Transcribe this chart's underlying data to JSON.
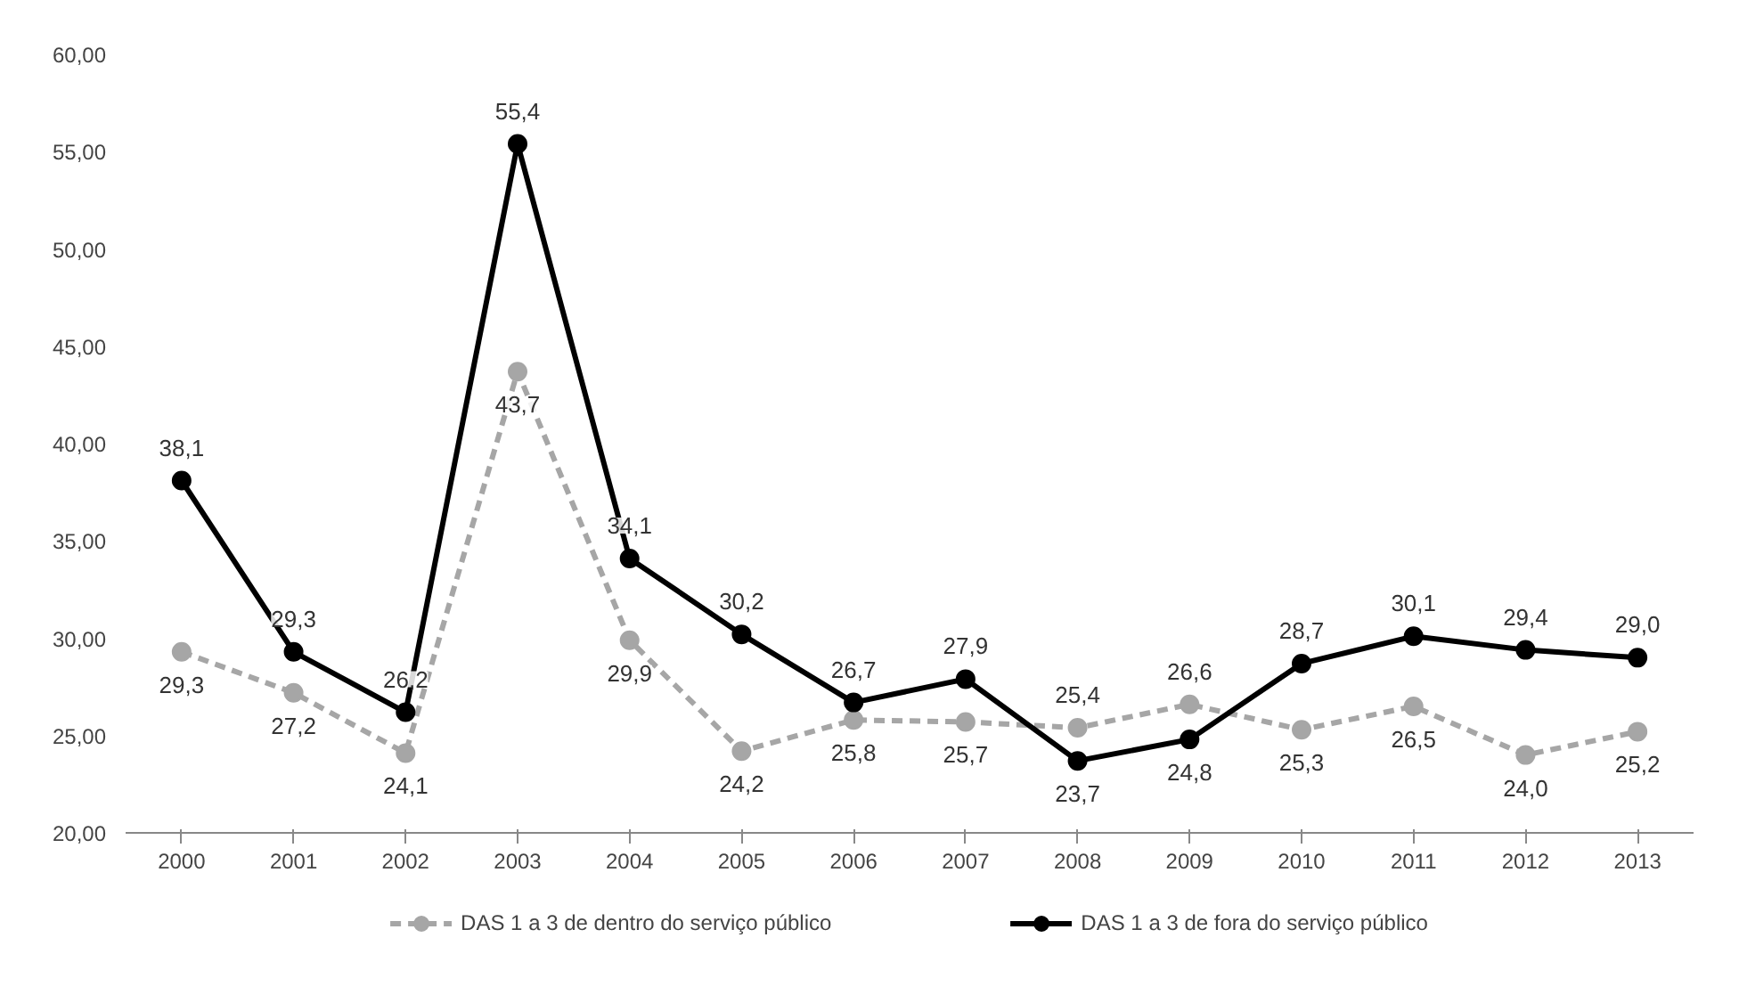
{
  "chart_data": {
    "type": "line",
    "categories": [
      "2000",
      "2001",
      "2002",
      "2003",
      "2004",
      "2005",
      "2006",
      "2007",
      "2008",
      "2009",
      "2010",
      "2011",
      "2012",
      "2013"
    ],
    "series": [
      {
        "name": "DAS 1 a 3 de dentro do serviço público",
        "color": "#a6a6a6",
        "line_style": "dashed",
        "values": [
          29.3,
          27.2,
          24.1,
          43.7,
          29.9,
          24.2,
          25.8,
          25.7,
          25.4,
          26.6,
          25.3,
          26.5,
          24.0,
          25.2
        ],
        "value_labels": [
          "29,3",
          "27,2",
          "24,1",
          "43,7",
          "29,9",
          "24,2",
          "25,8",
          "25,7",
          "25,4",
          "26,6",
          "25,3",
          "26,5",
          "24,0",
          "25,2"
        ]
      },
      {
        "name": "DAS 1 a 3 de fora do serviço público",
        "color": "#000000",
        "line_style": "solid",
        "values": [
          38.1,
          29.3,
          26.2,
          55.4,
          34.1,
          30.2,
          26.7,
          27.9,
          23.7,
          24.8,
          28.7,
          30.1,
          29.4,
          29.0
        ],
        "value_labels": [
          "38,1",
          "29,3",
          "26,2",
          "55,4",
          "34,1",
          "30,2",
          "26,7",
          "27,9",
          "23,7",
          "24,8",
          "28,7",
          "30,1",
          "29,4",
          "29,0"
        ]
      }
    ],
    "ylim": [
      20,
      60
    ],
    "yticks": [
      {
        "value": 20,
        "label": "20,00"
      },
      {
        "value": 25,
        "label": "25,00"
      },
      {
        "value": 30,
        "label": "30,00"
      },
      {
        "value": 35,
        "label": "35,00"
      },
      {
        "value": 40,
        "label": "40,00"
      },
      {
        "value": 45,
        "label": "45,00"
      },
      {
        "value": 50,
        "label": "50,00"
      },
      {
        "value": 55,
        "label": "55,00"
      },
      {
        "value": 60,
        "label": "60,00"
      }
    ],
    "marker": "circle",
    "grid": false,
    "legend": "bottom"
  }
}
